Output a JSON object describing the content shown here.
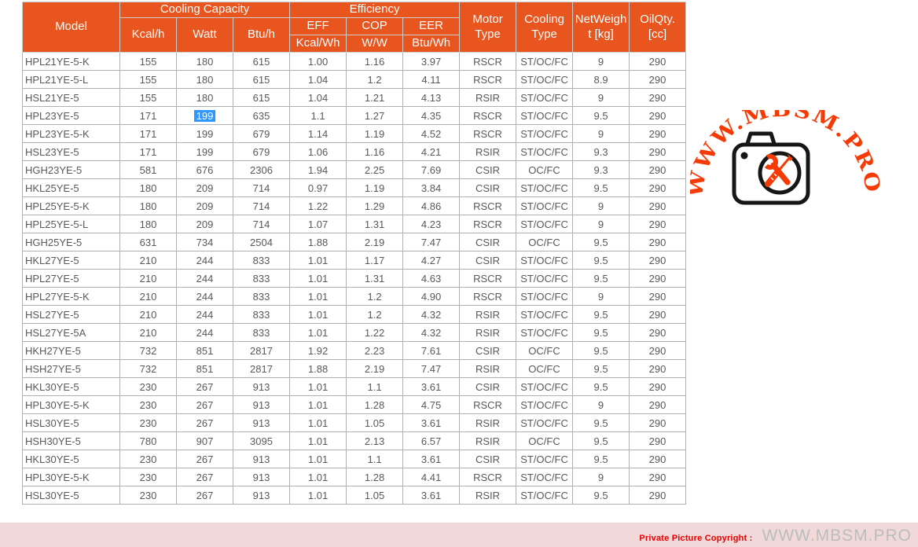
{
  "table": {
    "header": {
      "model": "Model",
      "cooling_capacity": "Cooling Capacity",
      "efficiency": "Efficiency",
      "kcal_h": "Kcal/h",
      "watt": "Watt",
      "btu_h": "Btu/h",
      "eff": "EFF",
      "cop": "COP",
      "eer": "EER",
      "kcal_wh": "Kcal/Wh",
      "w_w": "W/W",
      "btu_wh": "Btu/Wh",
      "motor_type": "Motor Type",
      "cooling_type": "Cooling Type",
      "net_weight_line1": "NetWeigh",
      "net_weight_line2": "t [kg]",
      "oil_qty_line1": "OilQty.",
      "oil_qty_line2": "[cc]"
    },
    "rows": [
      [
        "HPL21YE-5-K",
        "155",
        "180",
        "615",
        "1.00",
        "1.16",
        "3.97",
        "RSCR",
        "ST/OC/FC",
        "9",
        "290"
      ],
      [
        "HPL21YE-5-L",
        "155",
        "180",
        "615",
        "1.04",
        "1.2",
        "4.11",
        "RSCR",
        "ST/OC/FC",
        "8.9",
        "290"
      ],
      [
        "HSL21YE-5",
        "155",
        "180",
        "615",
        "1.04",
        "1.21",
        "4.13",
        "RSIR",
        "ST/OC/FC",
        "9",
        "290"
      ],
      [
        "HPL23YE-5",
        "171",
        "199",
        "635",
        "1.1",
        "1.27",
        "4.35",
        "RSCR",
        "ST/OC/FC",
        "9.5",
        "290"
      ],
      [
        "HPL23YE-5-K",
        "171",
        "199",
        "679",
        "1.14",
        "1.19",
        "4.52",
        "RSCR",
        "ST/OC/FC",
        "9",
        "290"
      ],
      [
        "HSL23YE-5",
        "171",
        "199",
        "679",
        "1.06",
        "1.16",
        "4.21",
        "RSIR",
        "ST/OC/FC",
        "9.3",
        "290"
      ],
      [
        "HGH23YE-5",
        "581",
        "676",
        "2306",
        "1.94",
        "2.25",
        "7.69",
        "CSIR",
        "OC/FC",
        "9.3",
        "290"
      ],
      [
        "HKL25YE-5",
        "180",
        "209",
        "714",
        "0.97",
        "1.19",
        "3.84",
        "CSIR",
        "ST/OC/FC",
        "9.5",
        "290"
      ],
      [
        "HPL25YE-5-K",
        "180",
        "209",
        "714",
        "1.22",
        "1.29",
        "4.86",
        "RSCR",
        "ST/OC/FC",
        "9",
        "290"
      ],
      [
        "HPL25YE-5-L",
        "180",
        "209",
        "714",
        "1.07",
        "1.31",
        "4.23",
        "RSCR",
        "ST/OC/FC",
        "9",
        "290"
      ],
      [
        "HGH25YE-5",
        "631",
        "734",
        "2504",
        "1.88",
        "2.19",
        "7.47",
        "CSIR",
        "OC/FC",
        "9.5",
        "290"
      ],
      [
        "HKL27YE-5",
        "210",
        "244",
        "833",
        "1.01",
        "1.17",
        "4.27",
        "CSIR",
        "ST/OC/FC",
        "9.5",
        "290"
      ],
      [
        "HPL27YE-5",
        "210",
        "244",
        "833",
        "1.01",
        "1.31",
        "4.63",
        "RSCR",
        "ST/OC/FC",
        "9.5",
        "290"
      ],
      [
        "HPL27YE-5-K",
        "210",
        "244",
        "833",
        "1.01",
        "1.2",
        "4.90",
        "RSCR",
        "ST/OC/FC",
        "9",
        "290"
      ],
      [
        "HSL27YE-5",
        "210",
        "244",
        "833",
        "1.01",
        "1.2",
        "4.32",
        "RSIR",
        "ST/OC/FC",
        "9.5",
        "290"
      ],
      [
        "HSL27YE-5A",
        "210",
        "244",
        "833",
        "1.01",
        "1.22",
        "4.32",
        "RSIR",
        "ST/OC/FC",
        "9.5",
        "290"
      ],
      [
        "HKH27YE-5",
        "732",
        "851",
        "2817",
        "1.92",
        "2.23",
        "7.61",
        "CSIR",
        "OC/FC",
        "9.5",
        "290"
      ],
      [
        "HSH27YE-5",
        "732",
        "851",
        "2817",
        "1.88",
        "2.19",
        "7.47",
        "RSIR",
        "OC/FC",
        "9.5",
        "290"
      ],
      [
        "HKL30YE-5",
        "230",
        "267",
        "913",
        "1.01",
        "1.1",
        "3.61",
        "CSIR",
        "ST/OC/FC",
        "9.5",
        "290"
      ],
      [
        "HPL30YE-5-K",
        "230",
        "267",
        "913",
        "1.01",
        "1.28",
        "4.75",
        "RSCR",
        "ST/OC/FC",
        "9",
        "290"
      ],
      [
        "HSL30YE-5",
        "230",
        "267",
        "913",
        "1.01",
        "1.05",
        "3.61",
        "RSIR",
        "ST/OC/FC",
        "9.5",
        "290"
      ],
      [
        "HSH30YE-5",
        "780",
        "907",
        "3095",
        "1.01",
        "2.13",
        "6.57",
        "RSIR",
        "OC/FC",
        "9.5",
        "290"
      ],
      [
        "HKL30YE-5",
        "230",
        "267",
        "913",
        "1.01",
        "1.1",
        "3.61",
        "CSIR",
        "ST/OC/FC",
        "9.5",
        "290"
      ],
      [
        "HPL30YE-5-K",
        "230",
        "267",
        "913",
        "1.01",
        "1.28",
        "4.41",
        "RSCR",
        "ST/OC/FC",
        "9",
        "290"
      ],
      [
        "HSL30YE-5",
        "230",
        "267",
        "913",
        "1.01",
        "1.05",
        "3.61",
        "RSIR",
        "ST/OC/FC",
        "9.5",
        "290"
      ]
    ],
    "selected_cell": {
      "row_index": 3,
      "col_index": 2
    }
  },
  "watermark": {
    "arc_text": "WWW.MBSM.PRO",
    "icon": "camera-with-repair-tools"
  },
  "footer": {
    "copyright_label": "Private Picture Copyright :",
    "site": "WWW.MBSM.PRO"
  },
  "colors": {
    "header_bg": "#E8551E",
    "header_text": "#FFFFFF",
    "body_text": "#58595B",
    "grid_line": "#B0B0B0",
    "selection_bg": "#3297FD",
    "watermark_accent": "#F63A06",
    "footer_bg": "#F2D9D9",
    "footer_label": "#E80000",
    "footer_site": "#B9BDBD"
  }
}
